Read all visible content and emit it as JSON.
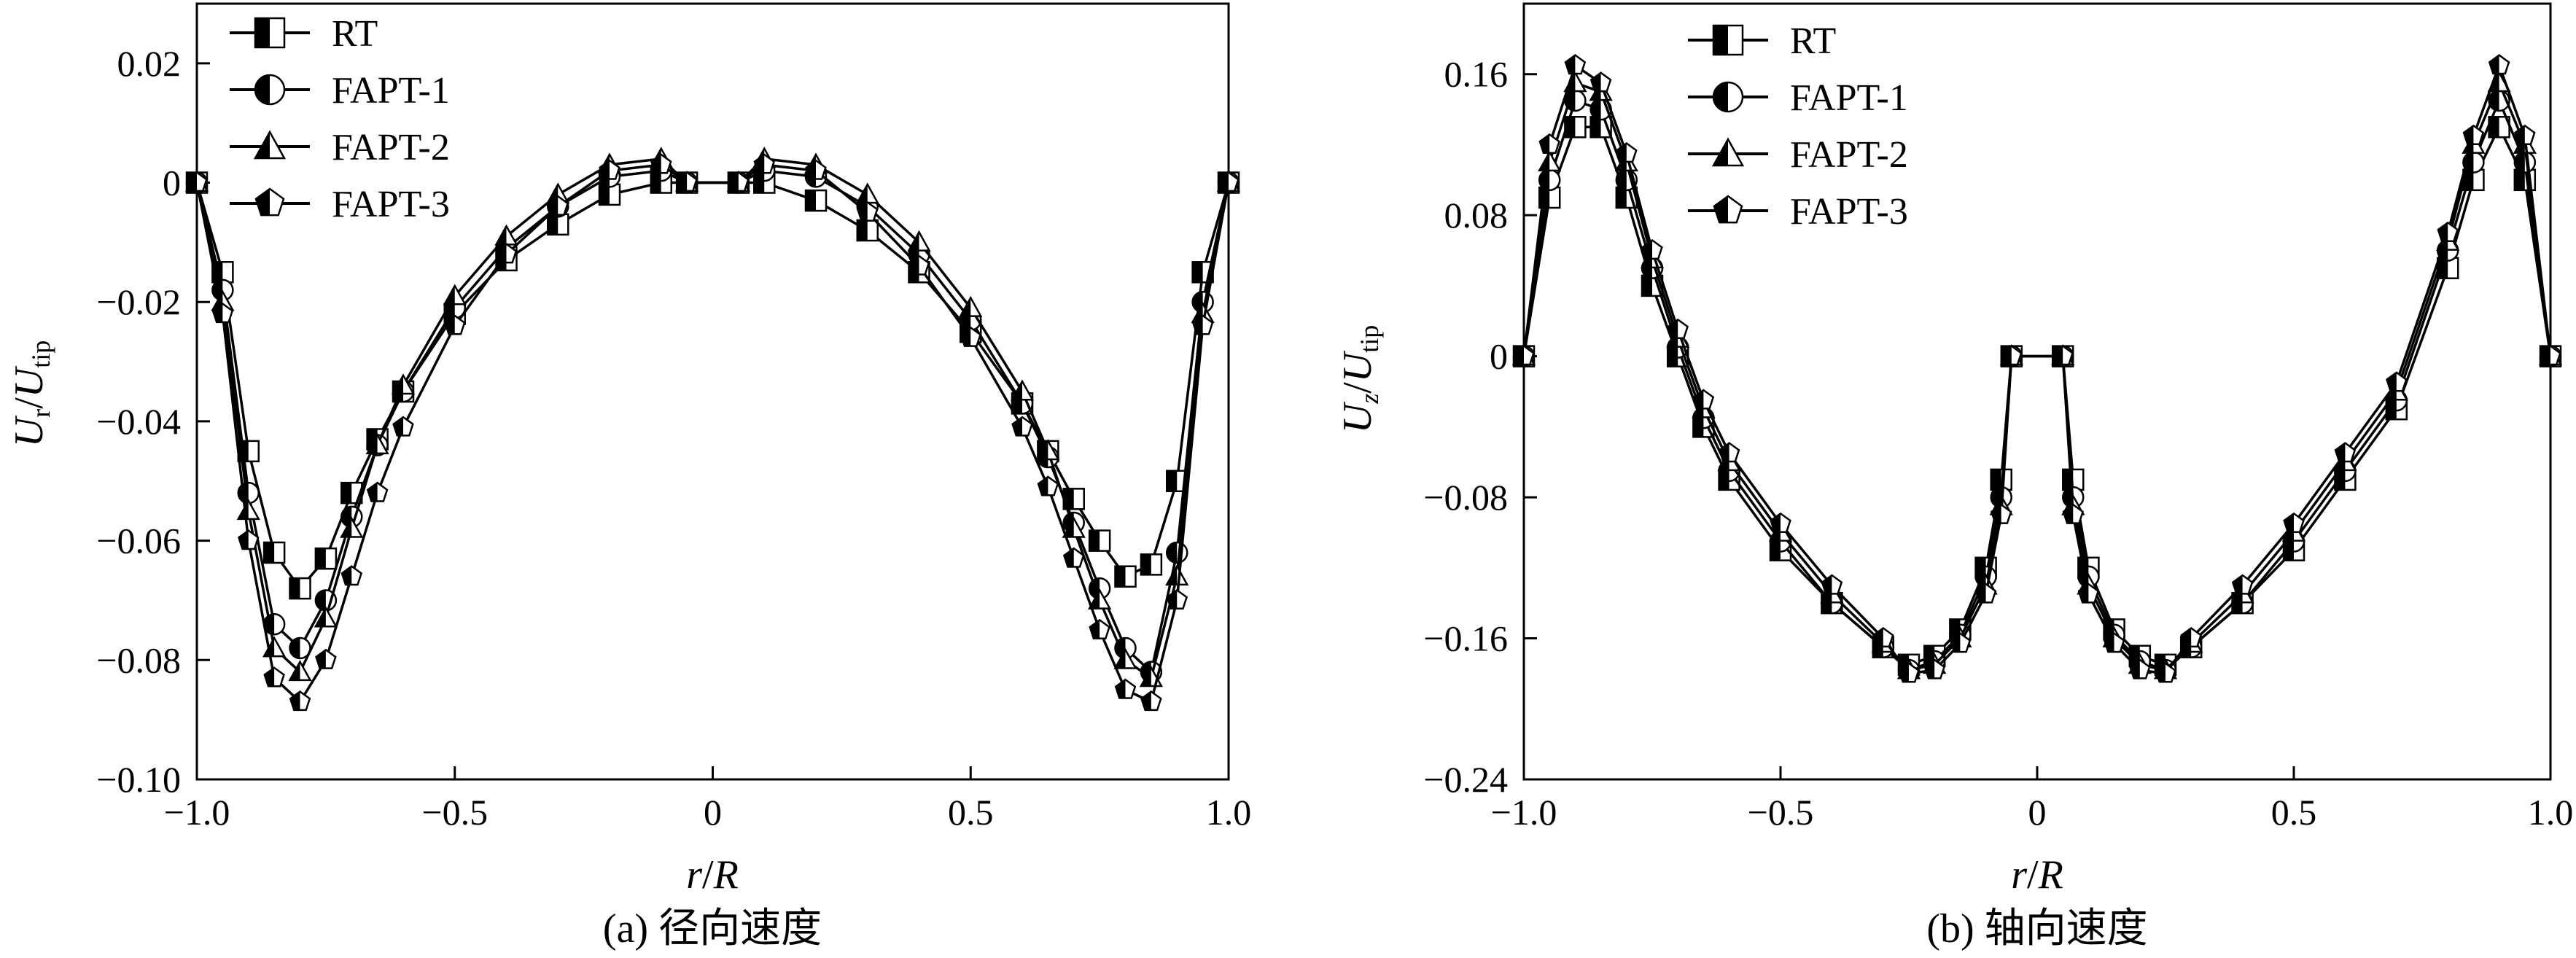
{
  "chart_data": [
    {
      "type": "line",
      "caption": "(a) 径向速度",
      "xlabel": "r/R",
      "ylabel": "Ur/Utip",
      "xlim": [
        -1.0,
        1.0
      ],
      "ylim": [
        -0.1,
        0.03
      ],
      "xticks": [
        "−1.0",
        "−0.5",
        "0",
        "0.5",
        "1.0"
      ],
      "xtick_values": [
        -1.0,
        -0.5,
        0,
        0.5,
        1.0
      ],
      "yticks": [
        "0.02",
        "0",
        "−0.02",
        "−0.04",
        "−0.06",
        "−0.08",
        "−0.10"
      ],
      "ytick_values": [
        0.02,
        0,
        -0.02,
        -0.04,
        -0.06,
        -0.08,
        -0.1
      ],
      "legend_position": "top-left",
      "x": [
        -1.0,
        -0.95,
        -0.9,
        -0.85,
        -0.8,
        -0.75,
        -0.7,
        -0.65,
        -0.6,
        -0.5,
        -0.4,
        -0.3,
        -0.2,
        -0.1,
        -0.05,
        0.05,
        0.1,
        0.2,
        0.3,
        0.4,
        0.5,
        0.6,
        0.65,
        0.7,
        0.75,
        0.8,
        0.85,
        0.9,
        0.95,
        1.0
      ],
      "series": [
        {
          "name": "RT",
          "marker": "square",
          "values": [
            0,
            -0.015,
            -0.045,
            -0.062,
            -0.068,
            -0.063,
            -0.052,
            -0.043,
            -0.035,
            -0.022,
            -0.013,
            -0.007,
            -0.002,
            0,
            0,
            0,
            0,
            -0.003,
            -0.008,
            -0.015,
            -0.025,
            -0.037,
            -0.045,
            -0.053,
            -0.06,
            -0.066,
            -0.064,
            -0.05,
            -0.015,
            0
          ]
        },
        {
          "name": "FAPT-1",
          "marker": "circle",
          "values": [
            0,
            -0.018,
            -0.052,
            -0.074,
            -0.078,
            -0.07,
            -0.056,
            -0.044,
            -0.035,
            -0.021,
            -0.011,
            -0.004,
            0.001,
            0.002,
            0,
            0,
            0.002,
            0.001,
            -0.004,
            -0.012,
            -0.023,
            -0.037,
            -0.046,
            -0.057,
            -0.068,
            -0.078,
            -0.082,
            -0.062,
            -0.02,
            0
          ]
        },
        {
          "name": "FAPT-2",
          "marker": "triangle",
          "values": [
            0,
            -0.02,
            -0.055,
            -0.078,
            -0.082,
            -0.073,
            -0.058,
            -0.044,
            -0.034,
            -0.019,
            -0.009,
            -0.002,
            0.003,
            0.004,
            0,
            0,
            0.004,
            0.003,
            -0.002,
            -0.01,
            -0.021,
            -0.035,
            -0.045,
            -0.058,
            -0.07,
            -0.08,
            -0.083,
            -0.066,
            -0.022,
            0
          ]
        },
        {
          "name": "FAPT-3",
          "marker": "pentagon",
          "values": [
            0,
            -0.022,
            -0.06,
            -0.083,
            -0.087,
            -0.08,
            -0.066,
            -0.052,
            -0.041,
            -0.024,
            -0.012,
            -0.004,
            0.002,
            0.003,
            0,
            0,
            0.003,
            0.002,
            -0.005,
            -0.014,
            -0.026,
            -0.041,
            -0.051,
            -0.063,
            -0.075,
            -0.085,
            -0.087,
            -0.07,
            -0.024,
            0
          ]
        }
      ]
    },
    {
      "type": "line",
      "caption": "(b) 轴向速度",
      "xlabel": "r/R",
      "ylabel": "Uz/Utip",
      "xlim": [
        -1.0,
        1.0
      ],
      "ylim": [
        -0.24,
        0.2
      ],
      "xticks": [
        "−1.0",
        "−0.5",
        "0",
        "0.5",
        "1.0"
      ],
      "xtick_values": [
        -1.0,
        -0.5,
        0,
        0.5,
        1.0
      ],
      "yticks": [
        "0.16",
        "0.08",
        "0",
        "−0.08",
        "−0.16",
        "−0.24"
      ],
      "ytick_values": [
        0.16,
        0.08,
        0,
        -0.08,
        -0.16,
        -0.24
      ],
      "legend_position": "top-left",
      "x": [
        -1.0,
        -0.95,
        -0.9,
        -0.85,
        -0.8,
        -0.75,
        -0.7,
        -0.65,
        -0.6,
        -0.5,
        -0.4,
        -0.3,
        -0.25,
        -0.2,
        -0.15,
        -0.1,
        -0.07,
        -0.05,
        0.05,
        0.07,
        0.1,
        0.15,
        0.2,
        0.25,
        0.3,
        0.4,
        0.5,
        0.6,
        0.7,
        0.8,
        0.85,
        0.9,
        0.95,
        1.0
      ],
      "series": [
        {
          "name": "RT",
          "marker": "square",
          "values": [
            0,
            0.09,
            0.13,
            0.13,
            0.09,
            0.04,
            0.0,
            -0.04,
            -0.07,
            -0.11,
            -0.14,
            -0.165,
            -0.175,
            -0.17,
            -0.155,
            -0.12,
            -0.07,
            0,
            0,
            -0.07,
            -0.12,
            -0.155,
            -0.17,
            -0.175,
            -0.165,
            -0.14,
            -0.11,
            -0.07,
            -0.03,
            0.05,
            0.1,
            0.13,
            0.1,
            0
          ]
        },
        {
          "name": "FAPT-1",
          "marker": "circle",
          "values": [
            0,
            0.1,
            0.145,
            0.14,
            0.1,
            0.05,
            0.005,
            -0.035,
            -0.065,
            -0.105,
            -0.14,
            -0.165,
            -0.178,
            -0.173,
            -0.158,
            -0.125,
            -0.08,
            0,
            0,
            -0.08,
            -0.125,
            -0.158,
            -0.173,
            -0.178,
            -0.165,
            -0.14,
            -0.105,
            -0.065,
            -0.025,
            0.06,
            0.11,
            0.145,
            0.11,
            0
          ]
        },
        {
          "name": "FAPT-2",
          "marker": "triangle",
          "values": [
            0,
            0.11,
            0.155,
            0.15,
            0.11,
            0.055,
            0.01,
            -0.03,
            -0.06,
            -0.1,
            -0.135,
            -0.163,
            -0.178,
            -0.175,
            -0.16,
            -0.13,
            -0.085,
            0,
            0,
            -0.085,
            -0.13,
            -0.16,
            -0.175,
            -0.178,
            -0.163,
            -0.135,
            -0.1,
            -0.06,
            -0.02,
            0.065,
            0.12,
            0.155,
            0.12,
            0
          ]
        },
        {
          "name": "FAPT-3",
          "marker": "pentagon",
          "values": [
            0,
            0.12,
            0.165,
            0.155,
            0.115,
            0.06,
            0.015,
            -0.025,
            -0.055,
            -0.095,
            -0.13,
            -0.16,
            -0.18,
            -0.178,
            -0.163,
            -0.135,
            -0.09,
            0,
            0,
            -0.09,
            -0.135,
            -0.163,
            -0.178,
            -0.18,
            -0.16,
            -0.13,
            -0.095,
            -0.055,
            -0.015,
            0.07,
            0.125,
            0.165,
            0.125,
            0
          ]
        }
      ]
    }
  ]
}
